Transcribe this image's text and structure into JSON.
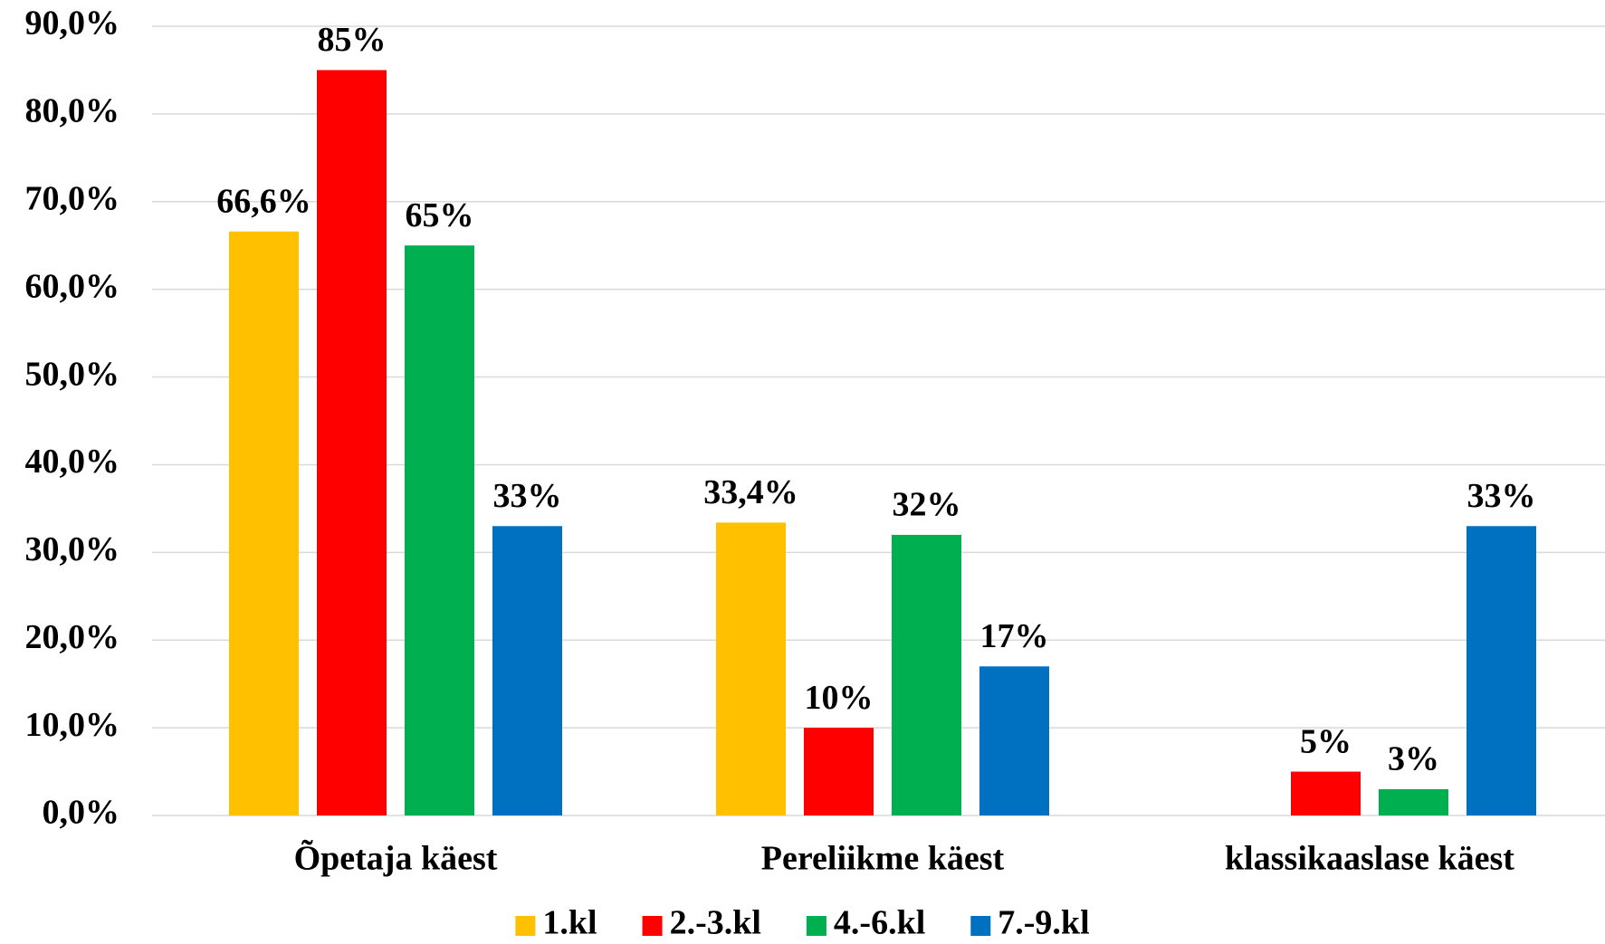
{
  "chart_data": {
    "type": "bar",
    "categories": [
      "Õpetaja käest",
      "Pereliikme käest",
      "klassikaaslase käest"
    ],
    "series": [
      {
        "name": "1.kl",
        "color": "#ffc000",
        "values": [
          66.6,
          33.4,
          null
        ],
        "value_labels": [
          "66,6%",
          "33,4%",
          null
        ]
      },
      {
        "name": "2.-3.kl",
        "color": "#ff0000",
        "values": [
          85,
          10,
          5
        ],
        "value_labels": [
          "85%",
          "10%",
          "5%"
        ]
      },
      {
        "name": "4.-6.kl",
        "color": "#00b050",
        "values": [
          65,
          32,
          3
        ],
        "value_labels": [
          "65%",
          "32%",
          "3%"
        ]
      },
      {
        "name": "7.-9.kl",
        "color": "#0070c0",
        "values": [
          33,
          17,
          33
        ],
        "value_labels": [
          "33%",
          "17%",
          "33%"
        ]
      }
    ],
    "ylim": [
      0,
      90
    ],
    "yticks": [
      {
        "value": 0,
        "label": "0,0%"
      },
      {
        "value": 10,
        "label": "10,0%"
      },
      {
        "value": 20,
        "label": "20,0%"
      },
      {
        "value": 30,
        "label": "30,0%"
      },
      {
        "value": 40,
        "label": "40,0%"
      },
      {
        "value": 50,
        "label": "50,0%"
      },
      {
        "value": 60,
        "label": "60,0%"
      },
      {
        "value": 70,
        "label": "70,0%"
      },
      {
        "value": 80,
        "label": "80,0%"
      },
      {
        "value": 90,
        "label": "90,0%"
      }
    ],
    "grid": true,
    "legend": "bottom"
  }
}
